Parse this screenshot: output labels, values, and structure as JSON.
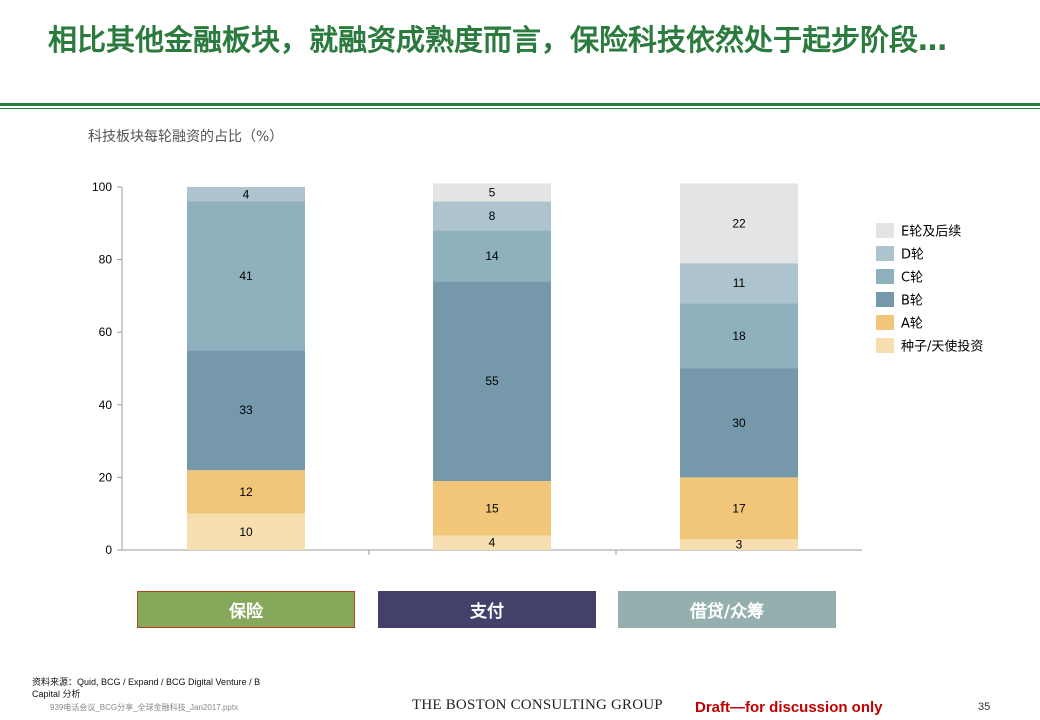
{
  "title": "相比其他金融板块，就融资成熟度而言，保险科技依然处于起步阶段…",
  "subtitle": "科技板块每轮融资的占比（%）",
  "chart_data": {
    "type": "bar",
    "stacked": true,
    "categories": [
      "保险",
      "支付",
      "借贷/众筹"
    ],
    "ylim": [
      0,
      100
    ],
    "yticks": [
      0,
      20,
      40,
      60,
      80,
      100
    ],
    "series": [
      {
        "name": "种子/天使投资",
        "color": "#f7deb0",
        "values": [
          10,
          4,
          3
        ]
      },
      {
        "name": "A轮",
        "color": "#f2c679",
        "values": [
          12,
          15,
          17
        ]
      },
      {
        "name": "B轮",
        "color": "#7598ab",
        "values": [
          33,
          55,
          30
        ]
      },
      {
        "name": "C轮",
        "color": "#8fb0bd",
        "values": [
          41,
          14,
          18
        ]
      },
      {
        "name": "D轮",
        "color": "#adc3cd",
        "values": [
          4,
          8,
          11
        ]
      },
      {
        "name": "E轮及后续",
        "color": "#e3e4e5",
        "values": [
          0,
          5,
          22
        ]
      }
    ],
    "legend_order": [
      "E轮及后续",
      "D轮",
      "C轮",
      "B轮",
      "A轮",
      "种子/天使投资"
    ],
    "legend": "right"
  },
  "category_buttons": [
    {
      "label": "保险",
      "color": "#85a85a"
    },
    {
      "label": "支付",
      "color": "#43406a"
    },
    {
      "label": "借贷/众筹",
      "color": "#95aeae"
    }
  ],
  "footer": {
    "source": "资料来源：Quid, BCG  / Expand / BCG Digital Venture / B Capital 分析",
    "filename": "939电话会议_BCG分享_全球金融科技_Jan2017.pptx",
    "brand": "THE BOSTON CONSULTING GROUP",
    "draft": "Draft—for discussion only",
    "page": "35"
  }
}
